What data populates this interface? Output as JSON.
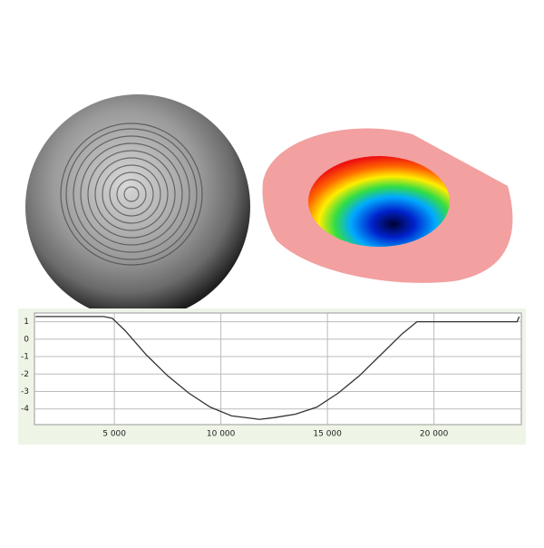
{
  "chart_data": {
    "type": "line",
    "x": [
      1300,
      4500,
      4900,
      5500,
      6500,
      7500,
      8500,
      9500,
      10500,
      11500,
      11800,
      12500,
      13500,
      14500,
      15500,
      16500,
      17500,
      18500,
      19200,
      20000,
      22000,
      23900,
      24000
    ],
    "series": [
      {
        "color": "#333333",
        "values": [
          1.3,
          1.3,
          1.2,
          0.5,
          -0.9,
          -2.1,
          -3.1,
          -3.9,
          -4.4,
          -4.55,
          -4.6,
          -4.5,
          -4.3,
          -3.9,
          -3.1,
          -2.1,
          -0.9,
          0.3,
          1.0,
          1.0,
          1.0,
          1.0,
          1.3
        ]
      }
    ],
    "xlim": [
      1250,
      24100
    ],
    "ylim": [
      -4.9,
      1.5
    ],
    "xticks": [
      {
        "value": 5000,
        "label": "5 000"
      },
      {
        "value": 10000,
        "label": "10 000"
      },
      {
        "value": 15000,
        "label": "15 000"
      },
      {
        "value": 20000,
        "label": "20 000"
      }
    ],
    "yticks": [
      1,
      0,
      -1,
      -2,
      -3,
      -4
    ],
    "grid": true
  }
}
